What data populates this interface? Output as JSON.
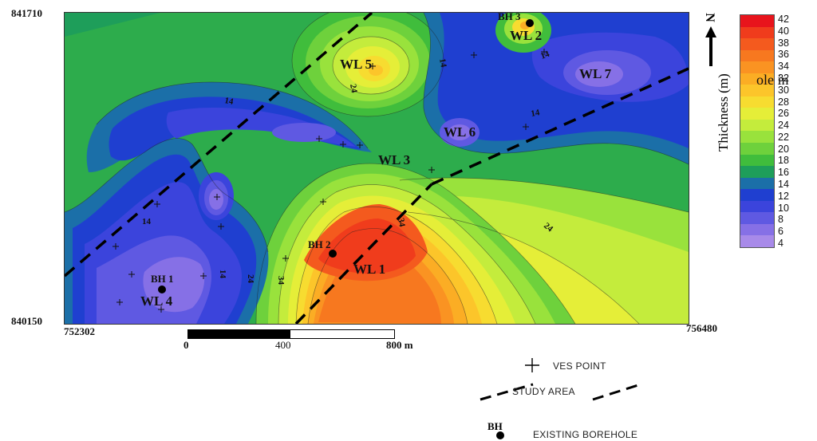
{
  "map": {
    "coord_top_left": "841710",
    "coord_bottom_left": "840150",
    "coord_x_left": "752302",
    "coord_x_right": "756480",
    "north_label": "N",
    "zones": [
      {
        "label": "WL 1"
      },
      {
        "label": "WL 2"
      },
      {
        "label": "WL 3"
      },
      {
        "label": "WL 4"
      },
      {
        "label": "WL 5"
      },
      {
        "label": "WL 6"
      },
      {
        "label": "WL 7"
      }
    ],
    "boreholes": [
      {
        "label": "BH 1"
      },
      {
        "label": "BH 2"
      },
      {
        "label": "BH 3"
      }
    ],
    "contour_labels": [
      "14",
      "14",
      "14",
      "14",
      "24",
      "24",
      "14",
      "14",
      "24",
      "34",
      "34",
      "24"
    ]
  },
  "scale_bar": {
    "ticks": [
      "0",
      "400",
      "800 m"
    ]
  },
  "legend": {
    "title": "Thickness (m)",
    "ticks": [
      "42",
      "40",
      "38",
      "36",
      "34",
      "32",
      "30",
      "28",
      "26",
      "24",
      "22",
      "20",
      "18",
      "16",
      "14",
      "12",
      "10",
      "8",
      "6",
      "4"
    ],
    "colors": [
      "#e8141c",
      "#f03c1c",
      "#f45a1e",
      "#f7781f",
      "#fa9322",
      "#fbad24",
      "#fcc52a",
      "#f7dc30",
      "#e5ee38",
      "#c4ec3c",
      "#99e23c",
      "#6ed13c",
      "#40bd3c",
      "#1e9e5a",
      "#1b6fa8",
      "#1f3fd0",
      "#3b44dc",
      "#5f59e2",
      "#8670e6",
      "#a88ae9"
    ],
    "key": {
      "ves_label": "VES POINT",
      "study_area_label": "STUDY AREA",
      "borehole_symbol": "BH",
      "borehole_label": "EXISTING BOREHOLE"
    },
    "overflow_text": "ole in"
  }
}
